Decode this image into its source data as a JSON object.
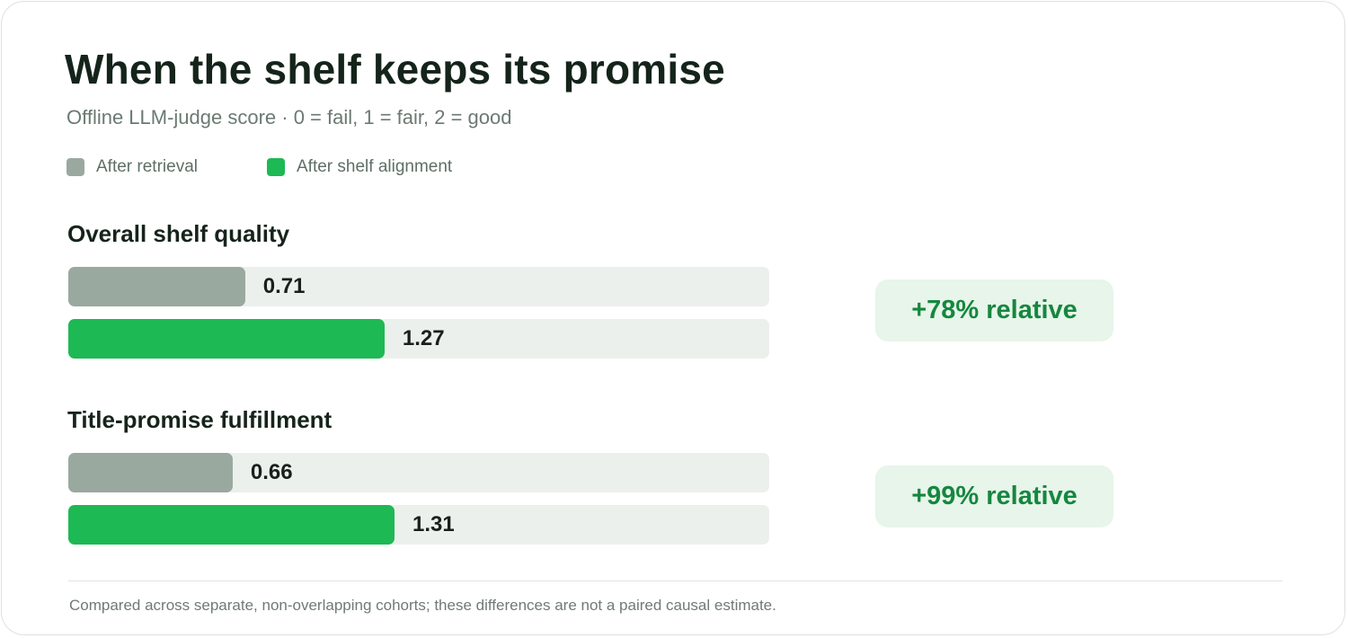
{
  "header": {
    "title": "When the shelf keeps its promise",
    "subtitle": "Offline LLM-judge score · 0 = fail, 1 = fair, 2 = good"
  },
  "legend": [
    {
      "label": "After retrieval",
      "color": "#9aa99f"
    },
    {
      "label": "After shelf alignment",
      "color": "#1db954"
    }
  ],
  "footnote": "Compared across separate, non-overlapping cohorts; these differences are not a paired causal estimate.",
  "chart_data": {
    "type": "bar",
    "orientation": "horizontal",
    "title": "When the shelf keeps its promise",
    "subtitle": "Offline LLM-judge score · 0 = fail, 1 = fair, 2 = good",
    "categories": [
      "Overall shelf quality",
      "Title-promise fulfillment"
    ],
    "series": [
      {
        "name": "After retrieval",
        "color": "#9aa99f",
        "values": [
          0.71,
          0.66
        ],
        "labels": [
          "0.71",
          "0.66"
        ]
      },
      {
        "name": "After shelf alignment",
        "color": "#1db954",
        "values": [
          1.27,
          1.31
        ],
        "labels": [
          "1.27",
          "1.31"
        ]
      }
    ],
    "annotations": [
      "+78% relative",
      "+99% relative"
    ],
    "xlim": [
      0,
      2
    ],
    "legend_position": "top-left",
    "grid": false
  }
}
